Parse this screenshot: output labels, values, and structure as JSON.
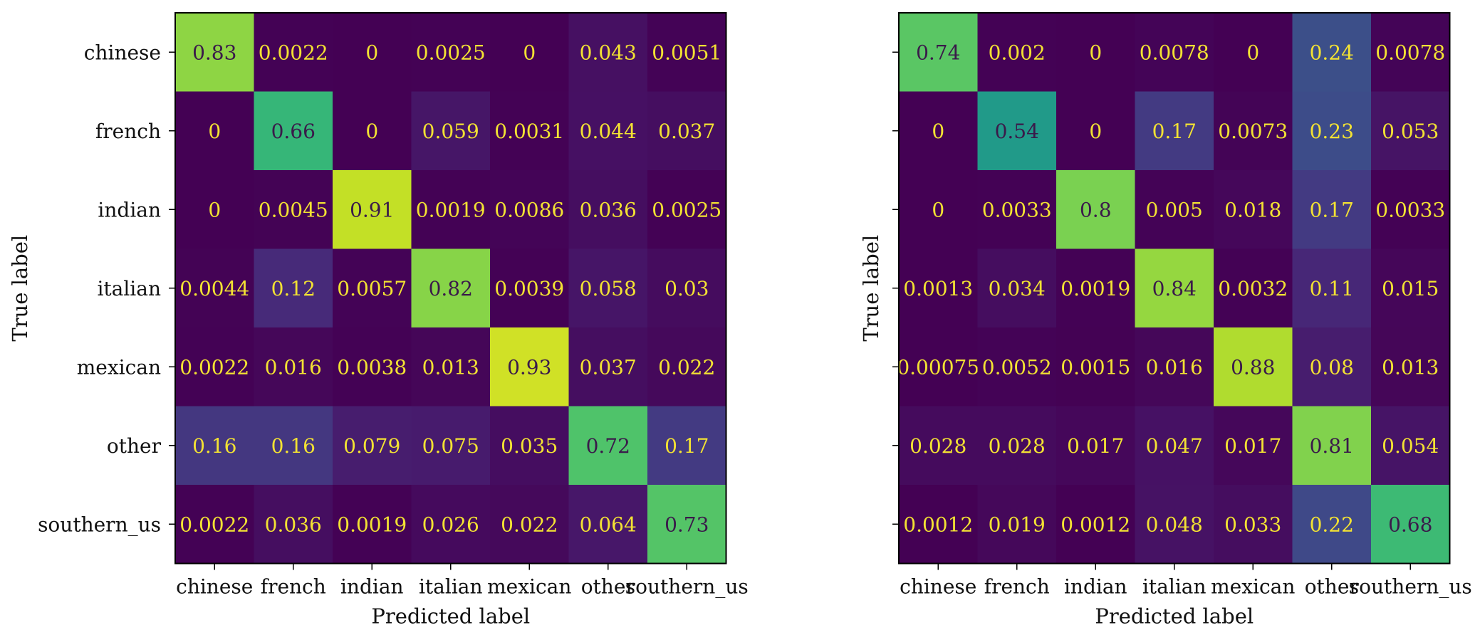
{
  "chart_data": [
    {
      "type": "heatmap",
      "xlabel": "Predicted label",
      "ylabel": "True label",
      "x_categories": [
        "chinese",
        "french",
        "indian",
        "italian",
        "mexican",
        "other",
        "southern_us"
      ],
      "y_categories": [
        "chinese",
        "french",
        "indian",
        "italian",
        "mexican",
        "other",
        "southern_us"
      ],
      "colormap": "viridis",
      "value_range": [
        0,
        1
      ],
      "y_tick_labels_visible": true,
      "cell_labels": [
        [
          "0.83",
          "0.0022",
          "0",
          "0.0025",
          "0",
          "0.043",
          "0.0051"
        ],
        [
          "0",
          "0.66",
          "0",
          "0.059",
          "0.0031",
          "0.044",
          "0.037"
        ],
        [
          "0",
          "0.0045",
          "0.91",
          "0.0019",
          "0.0086",
          "0.036",
          "0.0025"
        ],
        [
          "0.0044",
          "0.12",
          "0.0057",
          "0.82",
          "0.0039",
          "0.058",
          "0.03"
        ],
        [
          "0.0022",
          "0.016",
          "0.0038",
          "0.013",
          "0.93",
          "0.037",
          "0.022"
        ],
        [
          "0.16",
          "0.16",
          "0.079",
          "0.075",
          "0.035",
          "0.72",
          "0.17"
        ],
        [
          "0.0022",
          "0.036",
          "0.0019",
          "0.026",
          "0.022",
          "0.064",
          "0.73"
        ]
      ]
    },
    {
      "type": "heatmap",
      "xlabel": "Predicted label",
      "ylabel": "True label",
      "x_categories": [
        "chinese",
        "french",
        "indian",
        "italian",
        "mexican",
        "other",
        "southern_us"
      ],
      "y_categories": [
        "chinese",
        "french",
        "indian",
        "italian",
        "mexican",
        "other",
        "southern_us"
      ],
      "colormap": "viridis",
      "value_range": [
        0,
        1
      ],
      "y_tick_labels_visible": false,
      "cell_labels": [
        [
          "0.74",
          "0.002",
          "0",
          "0.0078",
          "0",
          "0.24",
          "0.0078"
        ],
        [
          "0",
          "0.54",
          "0",
          "0.17",
          "0.0073",
          "0.23",
          "0.053"
        ],
        [
          "0",
          "0.0033",
          "0.8",
          "0.005",
          "0.018",
          "0.17",
          "0.0033"
        ],
        [
          "0.0013",
          "0.034",
          "0.0019",
          "0.84",
          "0.0032",
          "0.11",
          "0.015"
        ],
        [
          "0.00075",
          "0.0052",
          "0.0015",
          "0.016",
          "0.88",
          "0.08",
          "0.013"
        ],
        [
          "0.028",
          "0.028",
          "0.017",
          "0.047",
          "0.017",
          "0.81",
          "0.054"
        ],
        [
          "0.0012",
          "0.019",
          "0.0012",
          "0.048",
          "0.033",
          "0.22",
          "0.68"
        ]
      ]
    }
  ]
}
